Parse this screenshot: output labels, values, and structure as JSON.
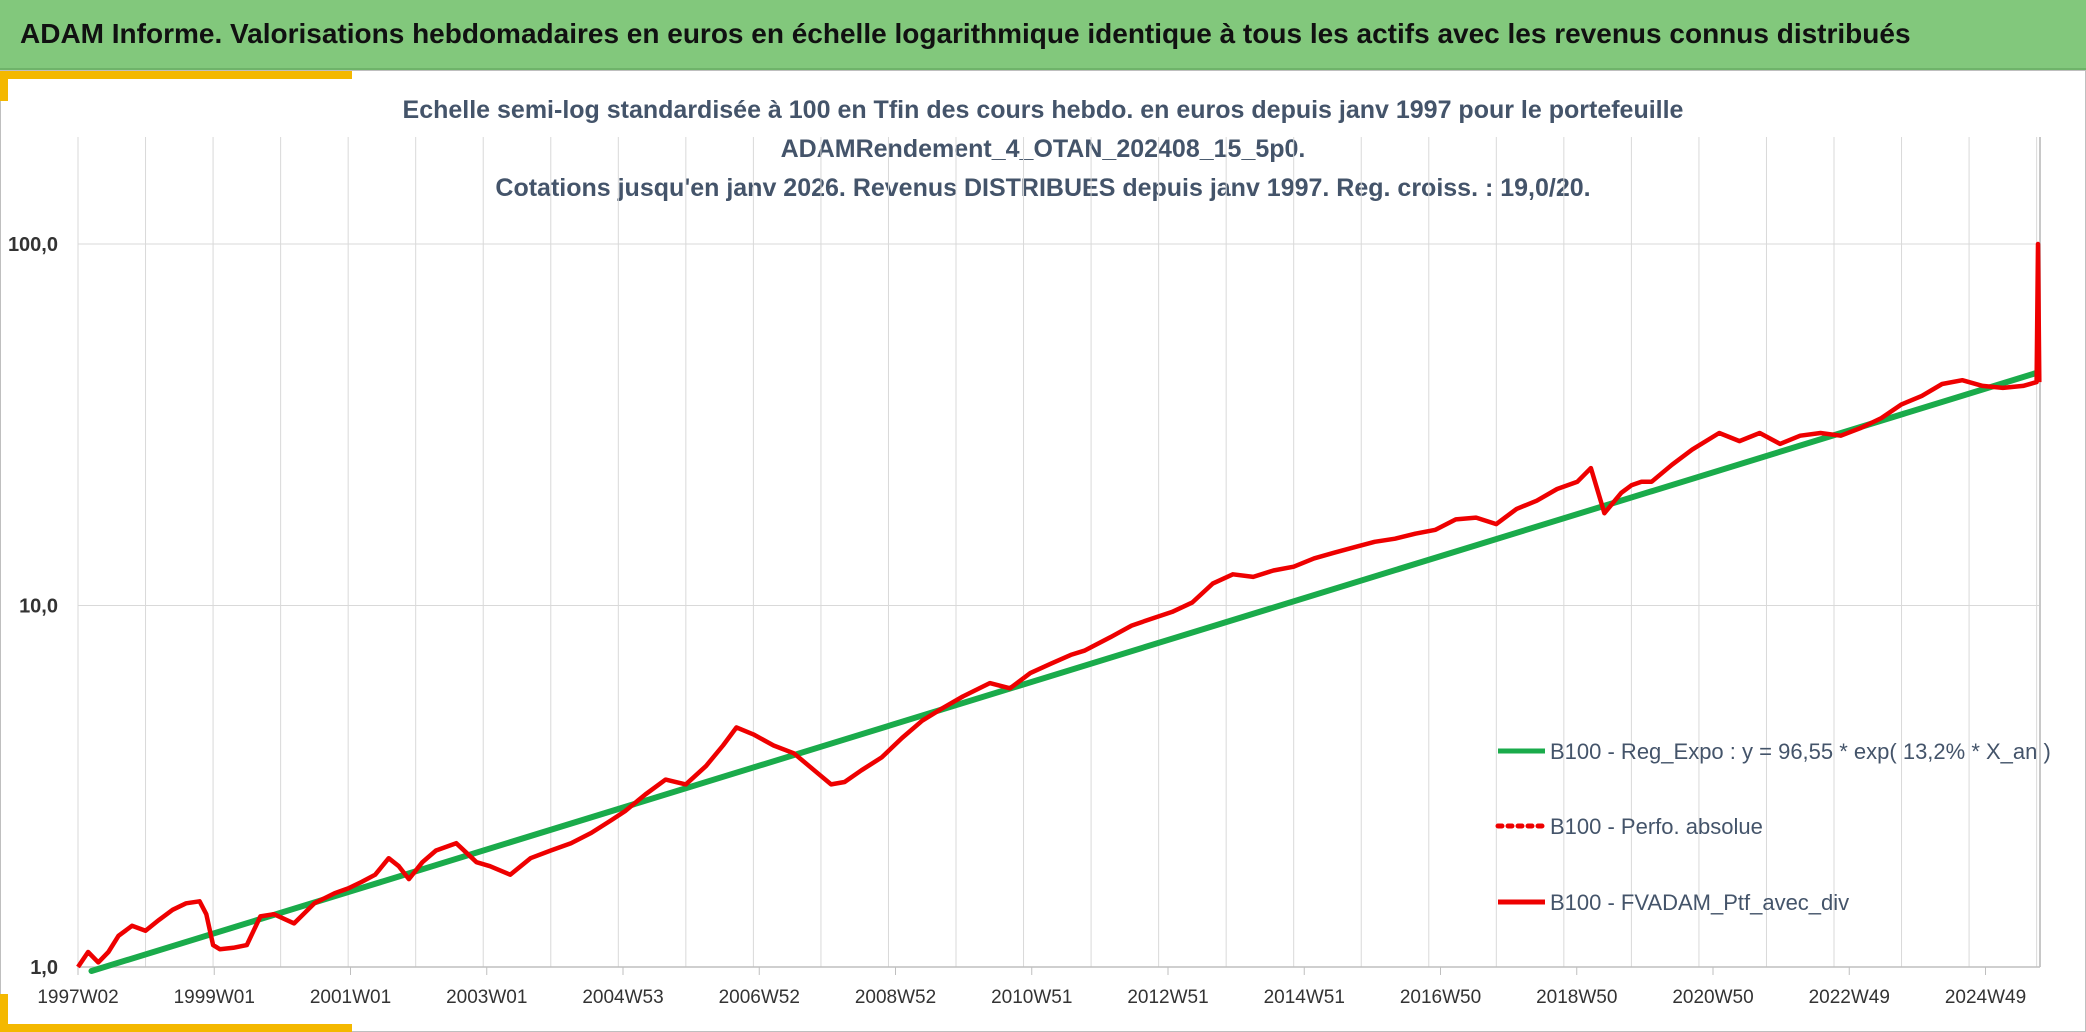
{
  "banner": {
    "title": "ADAM Informe. Valorisations hebdomadaires en euros en échelle logarithmique identique à tous les actifs avec les revenus connus distribués"
  },
  "colors": {
    "banner_bg": "#82c87c",
    "accent": "#f4b800",
    "regression": "#1aab4b",
    "portfolio": "#ee0000",
    "title_text": "#44546a",
    "grid": "#d9d9d9"
  },
  "chart_data": {
    "type": "line",
    "title_lines": [
      "Echelle semi-log standardisée à 100 en Tfin des cours hebdo. en euros depuis janv 1997 pour le portefeuille",
      "ADAMRendement_4_OTAN_202408_15_5p0.",
      "Cotations jusqu'en janv 2026. Revenus DISTRIBUES depuis janv 1997. Reg. croiss. : 19,0/20."
    ],
    "y_scale": "log",
    "ylim": [
      1,
      100
    ],
    "y_ticks": [
      {
        "value": 1,
        "label": "1,0"
      },
      {
        "value": 10,
        "label": "10,0"
      },
      {
        "value": 100,
        "label": "100,0"
      }
    ],
    "x_tick_labels": [
      "1997W02",
      "1999W01",
      "2001W01",
      "2003W01",
      "2004W53",
      "2006W52",
      "2008W52",
      "2010W51",
      "2012W51",
      "2014W51",
      "2016W50",
      "2018W50",
      "2020W50",
      "2022W49",
      "2024W49"
    ],
    "xlim": [
      1997.0,
      2026.05
    ],
    "grid": "vertical-lines-yearly",
    "legend_position": "lower-right",
    "series": [
      {
        "name": "B100 - Reg_Expo : y = 96,55 * exp( 13,2% *  X_an )",
        "style": "solid",
        "color": "#1aab4b",
        "x": [
          1997.2,
          2026.0
        ],
        "y": [
          0.975,
          44.0
        ]
      },
      {
        "name": "B100 - Perfo. absolue",
        "style": "dotted",
        "color": "#ee0000",
        "x": [],
        "y": []
      },
      {
        "name": "B100 - FVADAM_Ptf_avec_div",
        "style": "solid",
        "color": "#ee0000",
        "x": [
          1997.0,
          1997.15,
          1997.3,
          1997.45,
          1997.6,
          1997.8,
          1998.0,
          1998.2,
          1998.4,
          1998.6,
          1998.8,
          1998.9,
          1999.0,
          1999.1,
          1999.3,
          1999.5,
          1999.7,
          1999.9,
          2000.2,
          2000.5,
          2000.8,
          2001.0,
          2001.2,
          2001.4,
          2001.6,
          2001.75,
          2001.9,
          2002.1,
          2002.3,
          2002.6,
          2002.9,
          2003.1,
          2003.4,
          2003.7,
          2004.0,
          2004.3,
          2004.6,
          2004.9,
          2005.1,
          2005.4,
          2005.7,
          2006.0,
          2006.3,
          2006.55,
          2006.75,
          2007.0,
          2007.3,
          2007.6,
          2007.9,
          2008.15,
          2008.35,
          2008.6,
          2008.9,
          2009.2,
          2009.5,
          2009.8,
          2010.1,
          2010.5,
          2010.8,
          2011.1,
          2011.4,
          2011.7,
          2011.9,
          2012.3,
          2012.6,
          2012.9,
          2013.2,
          2013.5,
          2013.8,
          2014.1,
          2014.4,
          2014.7,
          2015.0,
          2015.3,
          2015.6,
          2015.9,
          2016.2,
          2016.5,
          2016.8,
          2017.1,
          2017.4,
          2017.7,
          2018.0,
          2018.3,
          2018.6,
          2018.9,
          2019.2,
          2019.4,
          2019.6,
          2019.85,
          2020.0,
          2020.15,
          2020.3,
          2020.6,
          2020.9,
          2021.3,
          2021.6,
          2021.9,
          2022.2,
          2022.5,
          2022.8,
          2023.1,
          2023.4,
          2023.7,
          2024.0,
          2024.3,
          2024.6,
          2024.9,
          2025.2,
          2025.5,
          2025.8,
          2026.0,
          2026.02,
          2026.04
        ],
        "y": [
          1.0,
          1.1,
          1.03,
          1.1,
          1.22,
          1.3,
          1.26,
          1.35,
          1.44,
          1.5,
          1.52,
          1.4,
          1.15,
          1.12,
          1.13,
          1.15,
          1.38,
          1.4,
          1.32,
          1.5,
          1.6,
          1.65,
          1.72,
          1.8,
          2.0,
          1.9,
          1.75,
          1.95,
          2.1,
          2.2,
          1.95,
          1.9,
          1.8,
          2.0,
          2.1,
          2.2,
          2.35,
          2.55,
          2.7,
          3.0,
          3.3,
          3.2,
          3.6,
          4.1,
          4.6,
          4.4,
          4.1,
          3.9,
          3.5,
          3.2,
          3.25,
          3.5,
          3.8,
          4.3,
          4.8,
          5.2,
          5.6,
          6.1,
          5.9,
          6.5,
          6.9,
          7.3,
          7.5,
          8.2,
          8.8,
          9.2,
          9.6,
          10.2,
          11.5,
          12.2,
          12.0,
          12.5,
          12.8,
          13.5,
          14.0,
          14.5,
          15.0,
          15.3,
          15.8,
          16.2,
          17.3,
          17.5,
          16.8,
          18.5,
          19.5,
          21.0,
          22.0,
          24.0,
          18.0,
          20.5,
          21.5,
          22.0,
          22.0,
          24.5,
          27.0,
          30.0,
          28.5,
          30.0,
          28.0,
          29.5,
          30.0,
          29.5,
          31.0,
          33.0,
          36.0,
          38.0,
          41.0,
          42.0,
          40.5,
          40.0,
          40.5,
          41.5,
          100.0,
          41.5
        ]
      }
    ]
  }
}
